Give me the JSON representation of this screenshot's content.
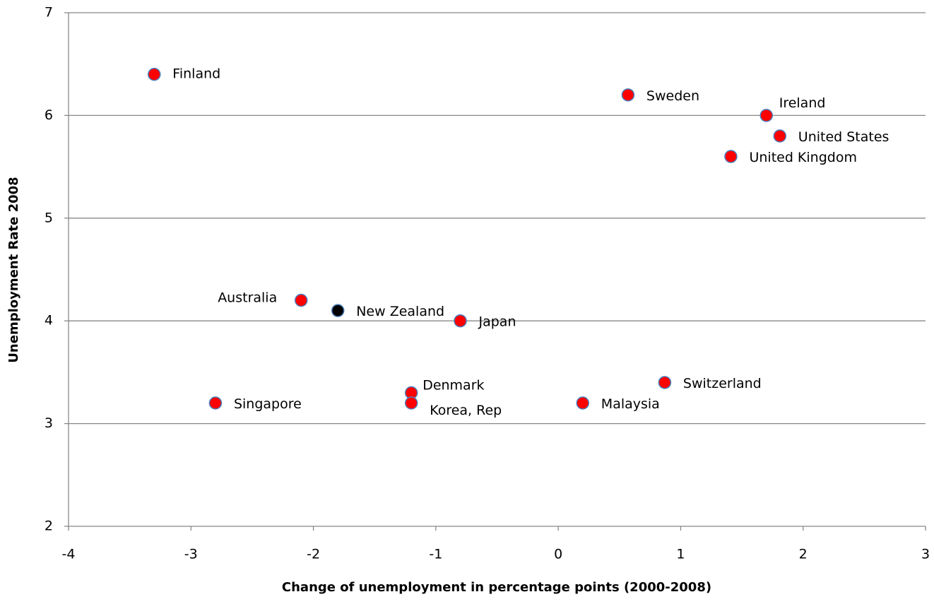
{
  "chart_data": {
    "type": "scatter",
    "x_label": "Change of unemployment in percentage points (2000-2008)",
    "y_label": "Unemployment Rate 2008",
    "labels": [
      "Finland",
      "Sweden",
      "Ireland",
      "United States",
      "United Kingdom",
      "Australia",
      "New Zealand",
      "Japan",
      "Denmark",
      "Korea, Rep",
      "Singapore",
      "Malaysia",
      "Switzerland"
    ],
    "x": [
      -3.3,
      0.57,
      1.7,
      1.81,
      1.41,
      -2.1,
      -1.8,
      -0.8,
      -1.2,
      -1.2,
      -2.8,
      0.2,
      0.87
    ],
    "y": [
      6.4,
      6.2,
      6.0,
      5.8,
      5.6,
      4.2,
      4.1,
      4.0,
      3.3,
      3.2,
      3.2,
      3.2,
      3.4
    ],
    "colors": [
      "#ff0000",
      "#ff0000",
      "#ff0000",
      "#ff0000",
      "#ff0000",
      "#ff0000",
      "#000000",
      "#ff0000",
      "#ff0000",
      "#ff0000",
      "#ff0000",
      "#ff0000",
      "#ff0000"
    ],
    "xlim": [
      -4,
      3
    ],
    "xticks": [
      -4,
      -3,
      -2,
      -1,
      0,
      1,
      2,
      3
    ],
    "ylim": [
      2,
      7
    ],
    "yticks": [
      2,
      3,
      4,
      5,
      6,
      7
    ],
    "grid": true
  }
}
